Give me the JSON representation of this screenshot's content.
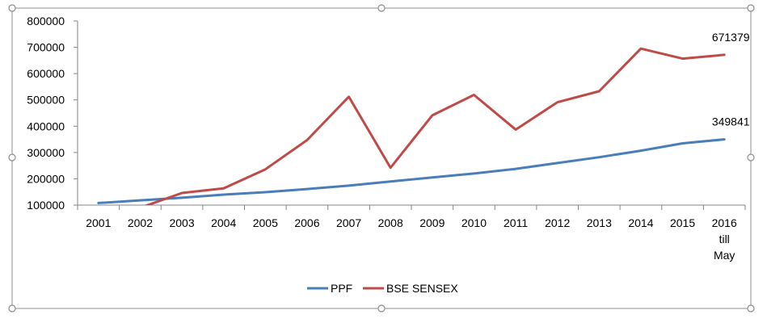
{
  "chart_data": {
    "type": "line",
    "title": "",
    "xlabel": "",
    "ylabel": "",
    "categories": [
      "2001",
      "2002",
      "2003",
      "2004",
      "2005",
      "2006",
      "2007",
      "2008",
      "2009",
      "2010",
      "2011",
      "2012",
      "2013",
      "2014",
      "2015",
      "2016 till May"
    ],
    "category_lines": [
      [
        "2001"
      ],
      [
        "2002"
      ],
      [
        "2003"
      ],
      [
        "2004"
      ],
      [
        "2005"
      ],
      [
        "2006"
      ],
      [
        "2007"
      ],
      [
        "2008"
      ],
      [
        "2009"
      ],
      [
        "2010"
      ],
      [
        "2011"
      ],
      [
        "2012"
      ],
      [
        "2013"
      ],
      [
        "2014"
      ],
      [
        "2015"
      ],
      [
        "2016",
        "till",
        "May"
      ]
    ],
    "y_ticks": [
      "100000",
      "200000",
      "300000",
      "400000",
      "500000",
      "600000",
      "700000",
      "800000"
    ],
    "ylim": [
      100000,
      800000
    ],
    "grid": false,
    "legend_position": "bottom",
    "series": [
      {
        "name": "PPF",
        "color": "#4A7EBB",
        "values": [
          108000,
          118000,
          128000,
          140000,
          149000,
          161000,
          174000,
          190000,
          205000,
          220000,
          238000,
          260000,
          282000,
          307000,
          335000,
          349841
        ],
        "end_label": "349841"
      },
      {
        "name": "BSE SENSEX",
        "color": "#BE4B48",
        "values": [
          75000,
          90000,
          146000,
          164000,
          236000,
          347000,
          512000,
          242000,
          441000,
          519000,
          387000,
          491000,
          533000,
          695000,
          657000,
          671379
        ],
        "end_label": "671379"
      }
    ]
  }
}
